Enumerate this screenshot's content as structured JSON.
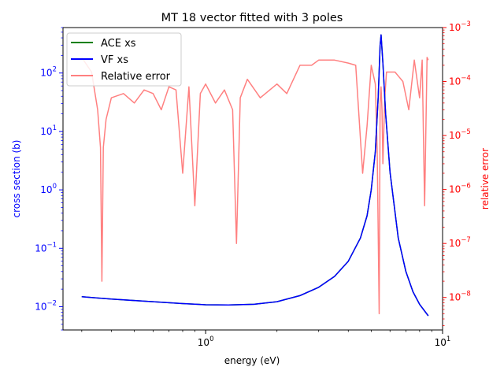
{
  "chart_data": {
    "type": "line",
    "title": "MT 18 vector fitted with 3 poles",
    "xlabel": "energy (eV)",
    "ylabel_left": "cross section (b)",
    "ylabel_right": "relative error",
    "x_scale": "log",
    "y_left_scale": "log",
    "y_right_scale": "log",
    "xlim": [
      0.25,
      10
    ],
    "ylim_left": [
      0.004,
      600
    ],
    "ylim_right": [
      2.5e-09,
      0.001
    ],
    "x_ticks": [
      {
        "value": 1,
        "label": "10^0"
      },
      {
        "value": 10,
        "label": "10^1"
      }
    ],
    "y_left_ticks": [
      {
        "value": 0.01,
        "label": "10^-2"
      },
      {
        "value": 0.1,
        "label": "10^-1"
      },
      {
        "value": 1,
        "label": "10^0"
      },
      {
        "value": 10,
        "label": "10^1"
      },
      {
        "value": 100,
        "label": "10^2"
      }
    ],
    "y_right_ticks": [
      {
        "value": 1e-08,
        "label": "10^-8"
      },
      {
        "value": 1e-07,
        "label": "10^-7"
      },
      {
        "value": 1e-06,
        "label": "10^-6"
      },
      {
        "value": 1e-05,
        "label": "10^-5"
      },
      {
        "value": 0.0001,
        "label": "10^-4"
      },
      {
        "value": 0.001,
        "label": "10^-3"
      }
    ],
    "legend_position": "top-left",
    "colors": {
      "ace": "#008000",
      "vf": "#0000ff",
      "error": "#ff8080",
      "left_axis": "#0000ff",
      "right_axis": "#ff0000"
    },
    "series": [
      {
        "name": "ACE xs",
        "axis": "left",
        "x": [
          0.3,
          0.4,
          0.6,
          0.8,
          1.0,
          1.25,
          1.6,
          2.0,
          2.5,
          3.0,
          3.5,
          4.0,
          4.5,
          4.8,
          5.0,
          5.2,
          5.35,
          5.45,
          5.5,
          5.6,
          5.75,
          6.0,
          6.5,
          7.0,
          7.5,
          8.0,
          8.7
        ],
        "values": [
          0.0148,
          0.0135,
          0.0122,
          0.0113,
          0.0108,
          0.0107,
          0.011,
          0.0122,
          0.0155,
          0.0215,
          0.033,
          0.06,
          0.15,
          0.36,
          1.0,
          4.5,
          40,
          300,
          450,
          150,
          20,
          2.0,
          0.15,
          0.04,
          0.018,
          0.011,
          0.007
        ]
      },
      {
        "name": "VF xs",
        "axis": "left",
        "x": [
          0.3,
          0.4,
          0.6,
          0.8,
          1.0,
          1.25,
          1.6,
          2.0,
          2.5,
          3.0,
          3.5,
          4.0,
          4.5,
          4.8,
          5.0,
          5.2,
          5.35,
          5.45,
          5.5,
          5.6,
          5.75,
          6.0,
          6.5,
          7.0,
          7.5,
          8.0,
          8.7
        ],
        "values": [
          0.0148,
          0.0135,
          0.0122,
          0.0113,
          0.0108,
          0.0107,
          0.011,
          0.0122,
          0.0155,
          0.0215,
          0.033,
          0.06,
          0.15,
          0.36,
          1.0,
          4.5,
          40,
          300,
          450,
          150,
          20,
          2.0,
          0.15,
          0.04,
          0.018,
          0.011,
          0.007
        ]
      },
      {
        "name": "Relative error",
        "axis": "right",
        "x": [
          0.3,
          0.33,
          0.35,
          0.36,
          0.365,
          0.37,
          0.38,
          0.4,
          0.45,
          0.5,
          0.55,
          0.6,
          0.65,
          0.7,
          0.75,
          0.8,
          0.85,
          0.9,
          0.95,
          1.0,
          1.1,
          1.2,
          1.3,
          1.35,
          1.4,
          1.5,
          1.7,
          2.0,
          2.2,
          2.5,
          2.8,
          3.0,
          3.5,
          4.0,
          4.3,
          4.6,
          4.8,
          5.0,
          5.2,
          5.3,
          5.4,
          5.45,
          5.5,
          5.55,
          5.6,
          5.7,
          5.8,
          6.0,
          6.3,
          6.8,
          7.2,
          7.6,
          8.0,
          8.2,
          8.4,
          8.6,
          8.7
        ],
        "values": [
          0.00028,
          0.00015,
          3e-05,
          6e-06,
          2e-08,
          6e-06,
          2e-05,
          5e-05,
          6e-05,
          4e-05,
          7e-05,
          6e-05,
          3e-05,
          8e-05,
          7e-05,
          2e-06,
          8e-05,
          5e-07,
          6e-05,
          9e-05,
          4e-05,
          7e-05,
          3e-05,
          1e-07,
          5e-05,
          0.00011,
          5e-05,
          9e-05,
          6e-05,
          0.0002,
          0.0002,
          0.00025,
          0.00025,
          0.00022,
          0.0002,
          2e-06,
          1.5e-05,
          0.0002,
          9e-05,
          5e-06,
          5e-09,
          4e-05,
          8e-05,
          3e-05,
          3e-06,
          5e-05,
          0.00015,
          0.00015,
          0.00015,
          0.0001,
          3e-05,
          0.00025,
          5e-05,
          0.00025,
          5e-07,
          0.00028,
          0.00025
        ]
      }
    ]
  }
}
